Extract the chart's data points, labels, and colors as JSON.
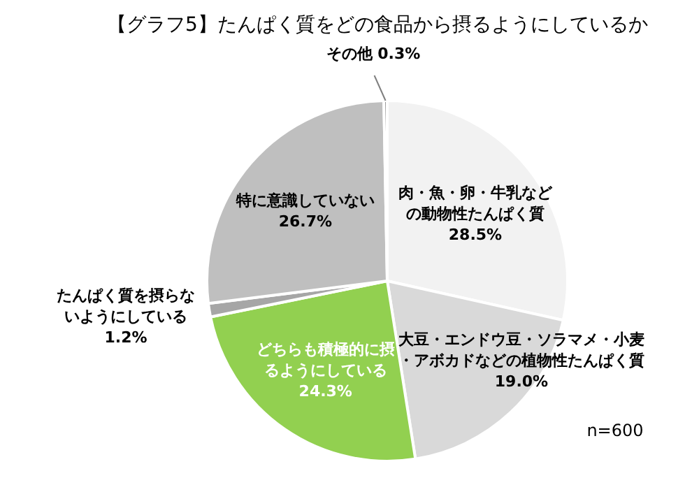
{
  "chart_data": {
    "type": "pie",
    "title": "【グラフ5】たんぱく質をどの食品から摂るようにしているか",
    "categories": [
      "肉・魚・卵・牛乳などの動物性たんぱく質",
      "大豆・エンドウ豆・ソラマメ・小麦・アボカドなどの植物性たんぱく質",
      "どちらも積極的に摂るようにしている",
      "たんぱく質を摂らないようにしている",
      "特に意識していない",
      "その他"
    ],
    "values": [
      28.5,
      19.0,
      24.3,
      1.2,
      26.7,
      0.3
    ],
    "value_labels": [
      "28.5%",
      "19.0%",
      "24.3%",
      "1.2%",
      "26.7%",
      "0.3%"
    ],
    "colors": [
      "#f2f2f2",
      "#d9d9d9",
      "#92d050",
      "#a6a6a6",
      "#bfbfbf",
      "#7f7f7f"
    ],
    "annotations": [
      "n=600"
    ]
  }
}
